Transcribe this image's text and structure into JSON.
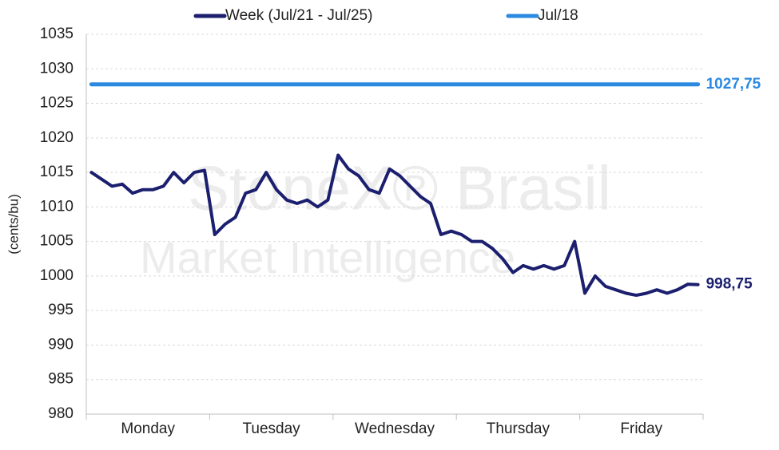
{
  "chart_data": {
    "type": "line",
    "y_label": "(cents/bu)",
    "watermark": [
      "StoneX® Brasil",
      "Market Intelligence"
    ],
    "categories": [
      null,
      null,
      null,
      null,
      null,
      null,
      "Monday",
      null,
      null,
      null,
      null,
      null,
      null,
      null,
      null,
      null,
      null,
      null,
      "Tuesday",
      null,
      null,
      null,
      null,
      null,
      null,
      null,
      null,
      null,
      null,
      null,
      "Wednesday",
      null,
      null,
      null,
      null,
      null,
      null,
      null,
      null,
      null,
      null,
      null,
      "Thursday",
      null,
      null,
      null,
      null,
      null,
      null,
      null,
      null,
      null,
      null,
      null,
      "Friday",
      null,
      null,
      null,
      null,
      null
    ],
    "series": [
      {
        "name": "Week (Jul/21 - Jul/25)",
        "color": "#1b1f6e",
        "values": [
          1015,
          1014,
          1013,
          1013.3,
          1012,
          1012.5,
          1012.5,
          1013,
          1015,
          1013.5,
          1015,
          1015.3,
          1006,
          1007.5,
          1008.5,
          1012,
          1012.5,
          1015,
          1012.5,
          1011,
          1010.5,
          1011,
          1010,
          1011,
          1017.5,
          1015.5,
          1014.5,
          1012.5,
          1012,
          1015.5,
          1014.5,
          1013,
          1011.5,
          1010.5,
          1006,
          1006.5,
          1006,
          1005,
          1005,
          1004,
          1002.5,
          1000.5,
          1001.5,
          1001,
          1001.5,
          1001,
          1001.5,
          1005,
          997.5,
          1000,
          998.5,
          998,
          997.5,
          997.2,
          997.5,
          998,
          997.5,
          998,
          998.8,
          998.75
        ],
        "value_labels": [
          null,
          null,
          null,
          null,
          null,
          null,
          null,
          null,
          null,
          null,
          null,
          null,
          null,
          null,
          null,
          null,
          null,
          null,
          null,
          null,
          null,
          null,
          null,
          null,
          null,
          null,
          null,
          null,
          null,
          null,
          null,
          null,
          null,
          null,
          null,
          null,
          null,
          null,
          null,
          null,
          null,
          null,
          null,
          null,
          null,
          null,
          null,
          null,
          null,
          null,
          null,
          null,
          null,
          null,
          null,
          null,
          null,
          null,
          null,
          "998,75"
        ]
      },
      {
        "name": "Jul/18",
        "color": "#2b8ae0",
        "values": [
          1027.75,
          1027.75,
          1027.75,
          1027.75,
          1027.75,
          1027.75,
          1027.75,
          1027.75,
          1027.75,
          1027.75,
          1027.75,
          1027.75,
          1027.75,
          1027.75,
          1027.75,
          1027.75,
          1027.75,
          1027.75,
          1027.75,
          1027.75,
          1027.75,
          1027.75,
          1027.75,
          1027.75,
          1027.75,
          1027.75,
          1027.75,
          1027.75,
          1027.75,
          1027.75,
          1027.75,
          1027.75,
          1027.75,
          1027.75,
          1027.75,
          1027.75,
          1027.75,
          1027.75,
          1027.75,
          1027.75,
          1027.75,
          1027.75,
          1027.75,
          1027.75,
          1027.75,
          1027.75,
          1027.75,
          1027.75,
          1027.75,
          1027.75,
          1027.75,
          1027.75,
          1027.75,
          1027.75,
          1027.75,
          1027.75,
          1027.75,
          1027.75,
          1027.75,
          1027.75
        ],
        "value_labels": [
          null,
          null,
          null,
          null,
          null,
          null,
          null,
          null,
          null,
          null,
          null,
          null,
          null,
          null,
          null,
          null,
          null,
          null,
          null,
          null,
          null,
          null,
          null,
          null,
          null,
          null,
          null,
          null,
          null,
          null,
          null,
          null,
          null,
          null,
          null,
          null,
          null,
          null,
          null,
          null,
          null,
          null,
          null,
          null,
          null,
          null,
          null,
          null,
          null,
          null,
          null,
          null,
          null,
          null,
          null,
          null,
          null,
          null,
          null,
          "1027,75"
        ]
      }
    ],
    "ylim": [
      980,
      1035
    ],
    "yticks": [
      980,
      985,
      990,
      995,
      1000,
      1005,
      1010,
      1015,
      1020,
      1025,
      1030,
      1035
    ],
    "grid": true,
    "legend": "top"
  }
}
